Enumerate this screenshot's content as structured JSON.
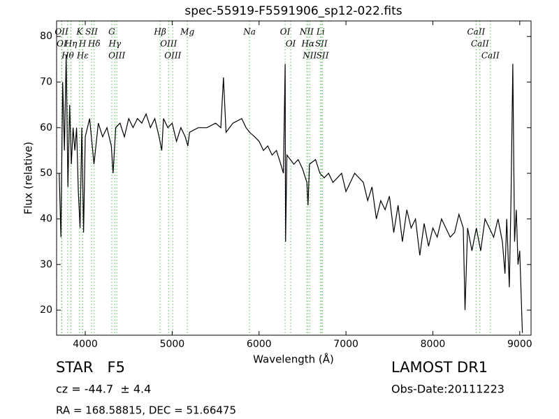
{
  "chart_data": {
    "type": "line",
    "title": "spec-55919-F5591906_sp12-022.fits",
    "x_label": "Wavelength (Å)",
    "y_label": "Flux (relative)",
    "xlim": [
      3670,
      9130
    ],
    "ylim": [
      14.5,
      83.4
    ],
    "xticks": [
      4000,
      5000,
      6000,
      7000,
      8000,
      9000
    ],
    "yticks": [
      20,
      30,
      40,
      50,
      60,
      70,
      80
    ],
    "series": [
      {
        "name": "spectrum",
        "color": "#000000",
        "x": [
          3700,
          3720,
          3740,
          3760,
          3780,
          3800,
          3820,
          3840,
          3860,
          3880,
          3900,
          3920,
          3940,
          3960,
          3980,
          4000,
          4050,
          4100,
          4150,
          4200,
          4250,
          4300,
          4320,
          4350,
          4400,
          4450,
          4500,
          4550,
          4600,
          4650,
          4700,
          4750,
          4800,
          4850,
          4880,
          4900,
          4950,
          5000,
          5050,
          5100,
          5150,
          5180,
          5200,
          5300,
          5400,
          5500,
          5560,
          5590,
          5620,
          5700,
          5800,
          5850,
          5890,
          5950,
          6000,
          6050,
          6100,
          6150,
          6200,
          6250,
          6280,
          6300,
          6305,
          6320,
          6400,
          6450,
          6500,
          6550,
          6563,
          6580,
          6650,
          6700,
          6750,
          6800,
          6850,
          6900,
          6950,
          7000,
          7100,
          7200,
          7250,
          7300,
          7350,
          7400,
          7450,
          7500,
          7550,
          7600,
          7650,
          7700,
          7750,
          7800,
          7850,
          7900,
          7950,
          8000,
          8050,
          8100,
          8150,
          8200,
          8250,
          8300,
          8350,
          8370,
          8400,
          8450,
          8500,
          8550,
          8600,
          8650,
          8700,
          8750,
          8800,
          8830,
          8850,
          8880,
          8900,
          8920,
          8940,
          8960,
          8980,
          9000,
          9030
        ],
        "values": [
          50,
          36,
          70,
          55,
          76,
          47,
          65,
          52,
          60,
          55,
          60,
          46,
          38,
          60,
          37,
          58,
          62,
          52,
          61,
          58,
          60,
          56,
          50,
          60,
          61,
          58,
          62,
          60,
          62,
          61,
          63,
          60,
          62,
          58,
          55,
          62,
          60,
          61,
          57,
          60,
          58,
          56,
          59,
          60,
          60,
          61,
          60,
          71,
          59,
          61,
          62,
          60,
          59,
          58,
          57,
          55,
          56,
          54,
          55,
          52,
          50,
          74,
          35,
          54,
          52,
          53,
          51,
          48,
          43,
          52,
          53,
          50,
          49,
          50,
          48,
          49,
          50,
          46,
          50,
          48,
          44,
          47,
          40,
          44,
          42,
          45,
          37,
          43,
          35,
          42,
          38,
          40,
          32,
          39,
          34,
          38,
          36,
          40,
          38,
          36,
          37,
          41,
          38,
          20,
          38,
          33,
          38,
          33,
          40,
          38,
          36,
          40,
          35,
          28,
          40,
          25,
          45,
          74,
          35,
          42,
          30,
          33,
          15
        ]
      }
    ],
    "line_ids": [
      {
        "label": "OII",
        "wavelength": 3727
      },
      {
        "label": "OI",
        "wavelength": 3730
      },
      {
        "label": "Hθ",
        "wavelength": 3798
      },
      {
        "label": "Hη",
        "wavelength": 3835
      },
      {
        "label": "K",
        "wavelength": 3934
      },
      {
        "label": "Hε",
        "wavelength": 3970
      },
      {
        "label": "H",
        "wavelength": 3968
      },
      {
        "label": "SII",
        "wavelength": 4072
      },
      {
        "label": "Hδ",
        "wavelength": 4102
      },
      {
        "label": "G",
        "wavelength": 4305
      },
      {
        "label": "Hγ",
        "wavelength": 4340
      },
      {
        "label": "OIII",
        "wavelength": 4363
      },
      {
        "label": "Hβ",
        "wavelength": 4861
      },
      {
        "label": "OIII",
        "wavelength": 4959
      },
      {
        "label": "OIII",
        "wavelength": 5007
      },
      {
        "label": "Mg",
        "wavelength": 5175
      },
      {
        "label": "Na",
        "wavelength": 5890
      },
      {
        "label": "OI",
        "wavelength": 6300
      },
      {
        "label": "OI",
        "wavelength": 6364
      },
      {
        "label": "NII",
        "wavelength": 6548
      },
      {
        "label": "Hα",
        "wavelength": 6563
      },
      {
        "label": "NII",
        "wavelength": 6583
      },
      {
        "label": "Li",
        "wavelength": 6708
      },
      {
        "label": "SII",
        "wavelength": 6716
      },
      {
        "label": "SII",
        "wavelength": 6731
      },
      {
        "label": "CaII",
        "wavelength": 8498
      },
      {
        "label": "CaII",
        "wavelength": 8542
      },
      {
        "label": "CaII",
        "wavelength": 8662
      }
    ],
    "line_id_color": "#55bb55",
    "object_class": "STAR   F5",
    "redshift_text": "cz = -44.7  ± 4.4",
    "coords_text": "RA = 168.58815, DEC = 51.66475",
    "survey": "LAMOST DR1",
    "obs_date": "Obs-Date:20111223"
  }
}
